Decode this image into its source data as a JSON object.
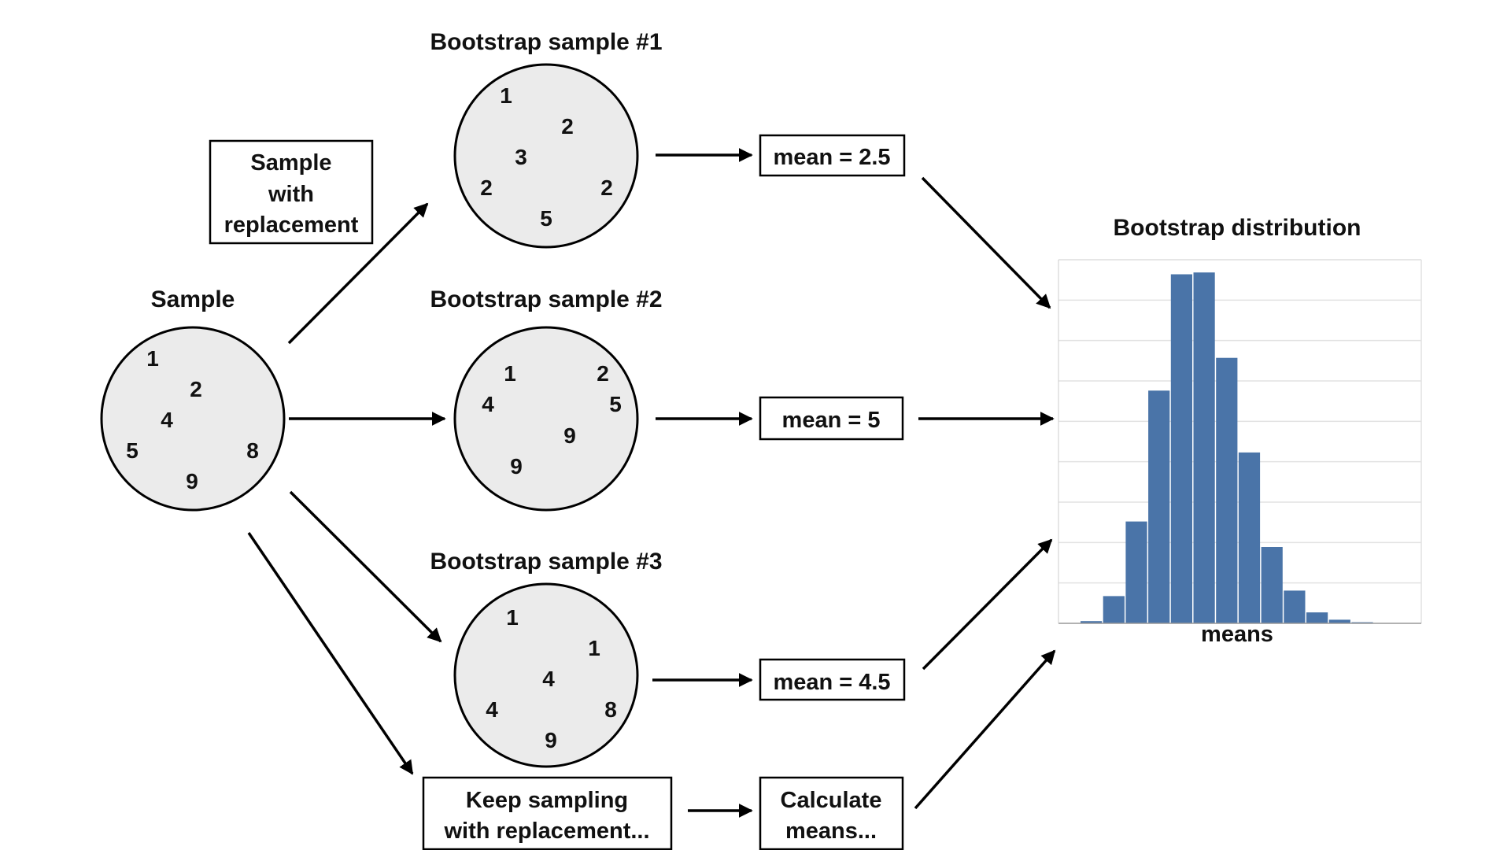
{
  "sample": {
    "title": "Sample",
    "numbers": [
      "1",
      "2",
      "4",
      "5",
      "8",
      "9"
    ]
  },
  "sample_with_replacement_box": [
    "Sample",
    "with",
    "replacement"
  ],
  "bootstrap_samples": [
    {
      "title": "Bootstrap sample #1",
      "numbers": [
        "1",
        "2",
        "3",
        "2",
        "2",
        "5"
      ],
      "mean_label": "mean = 2.5"
    },
    {
      "title": "Bootstrap sample #2",
      "numbers": [
        "1",
        "2",
        "4",
        "5",
        "9",
        "9"
      ],
      "mean_label": "mean = 5"
    },
    {
      "title": "Bootstrap sample #3",
      "numbers": [
        "1",
        "1",
        "4",
        "4",
        "8",
        "9"
      ],
      "mean_label": "mean = 4.5"
    }
  ],
  "keep_sampling_box": [
    "Keep sampling",
    "with replacement..."
  ],
  "calculate_means_box": [
    "Calculate",
    "means..."
  ],
  "histogram": {
    "title": "Bootstrap distribution",
    "xlabel": "means",
    "bar_color": "#4a74a8"
  },
  "chart_data": {
    "type": "bar",
    "title": "Bootstrap distribution",
    "xlabel": "means",
    "ylabel": "",
    "grid": true,
    "values": [
      0.6,
      7.5,
      28,
      64,
      96,
      96.5,
      73,
      47,
      21,
      9,
      3,
      1,
      0.3,
      0.1
    ],
    "ylim": [
      0,
      100
    ]
  }
}
